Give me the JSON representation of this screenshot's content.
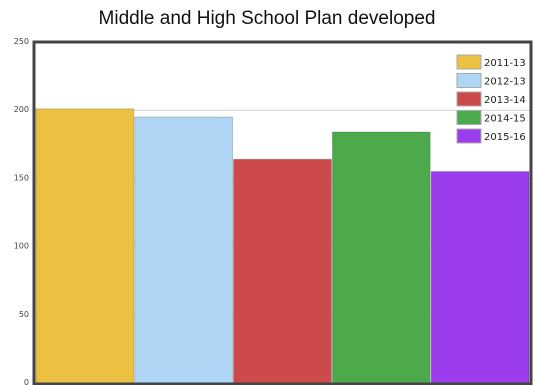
{
  "chart_data": {
    "type": "bar",
    "title": "Middle and High School Plan developed",
    "xlabel": "",
    "ylabel": "",
    "ylim": [
      0,
      250
    ],
    "yticks": [
      0,
      50,
      100,
      150,
      200,
      250
    ],
    "grid": true,
    "legend_position": "top-right",
    "series": [
      {
        "name": "2011-13",
        "value": 201,
        "color": "#ecc040"
      },
      {
        "name": "2012-13",
        "value": 195,
        "color": "#b0d6f6"
      },
      {
        "name": "2013-14",
        "value": 164,
        "color": "#cd4a4a"
      },
      {
        "name": "2014-15",
        "value": 184,
        "color": "#4caa4c"
      },
      {
        "name": "2015-16",
        "value": 155,
        "color": "#9b3ded"
      }
    ]
  }
}
